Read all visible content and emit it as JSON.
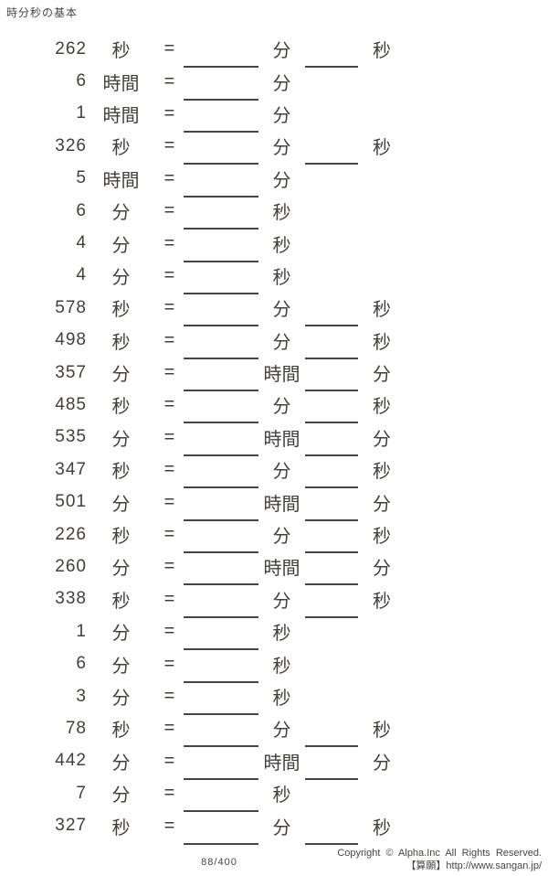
{
  "page": {
    "title": "時分秒の基本",
    "page_number": "88/400",
    "copyright": "Copyright © Alpha.Inc All Rights Reserved.",
    "credit": "【算願】http://www.sangan.jp/"
  },
  "colors": {
    "ink": "#443e38",
    "line": "#4a443e",
    "background": "#ffffff"
  },
  "equals_sign": "=",
  "problems": [
    {
      "value": "262",
      "from_unit": "秒",
      "to_unit_1": "分",
      "to_unit_2": "秒"
    },
    {
      "value": "6",
      "from_unit": "時間",
      "to_unit_1": "分"
    },
    {
      "value": "1",
      "from_unit": "時間",
      "to_unit_1": "分"
    },
    {
      "value": "326",
      "from_unit": "秒",
      "to_unit_1": "分",
      "to_unit_2": "秒"
    },
    {
      "value": "5",
      "from_unit": "時間",
      "to_unit_1": "分"
    },
    {
      "value": "6",
      "from_unit": "分",
      "to_unit_1": "秒"
    },
    {
      "value": "4",
      "from_unit": "分",
      "to_unit_1": "秒"
    },
    {
      "value": "4",
      "from_unit": "分",
      "to_unit_1": "秒"
    },
    {
      "value": "578",
      "from_unit": "秒",
      "to_unit_1": "分",
      "to_unit_2": "秒"
    },
    {
      "value": "498",
      "from_unit": "秒",
      "to_unit_1": "分",
      "to_unit_2": "秒"
    },
    {
      "value": "357",
      "from_unit": "分",
      "to_unit_1": "時間",
      "to_unit_2": "分"
    },
    {
      "value": "485",
      "from_unit": "秒",
      "to_unit_1": "分",
      "to_unit_2": "秒"
    },
    {
      "value": "535",
      "from_unit": "分",
      "to_unit_1": "時間",
      "to_unit_2": "分"
    },
    {
      "value": "347",
      "from_unit": "秒",
      "to_unit_1": "分",
      "to_unit_2": "秒"
    },
    {
      "value": "501",
      "from_unit": "分",
      "to_unit_1": "時間",
      "to_unit_2": "分"
    },
    {
      "value": "226",
      "from_unit": "秒",
      "to_unit_1": "分",
      "to_unit_2": "秒"
    },
    {
      "value": "260",
      "from_unit": "分",
      "to_unit_1": "時間",
      "to_unit_2": "分"
    },
    {
      "value": "338",
      "from_unit": "秒",
      "to_unit_1": "分",
      "to_unit_2": "秒"
    },
    {
      "value": "1",
      "from_unit": "分",
      "to_unit_1": "秒"
    },
    {
      "value": "6",
      "from_unit": "分",
      "to_unit_1": "秒"
    },
    {
      "value": "3",
      "from_unit": "分",
      "to_unit_1": "秒"
    },
    {
      "value": "78",
      "from_unit": "秒",
      "to_unit_1": "分",
      "to_unit_2": "秒"
    },
    {
      "value": "442",
      "from_unit": "分",
      "to_unit_1": "時間",
      "to_unit_2": "分"
    },
    {
      "value": "7",
      "from_unit": "分",
      "to_unit_1": "秒"
    },
    {
      "value": "327",
      "from_unit": "秒",
      "to_unit_1": "分",
      "to_unit_2": "秒"
    }
  ]
}
